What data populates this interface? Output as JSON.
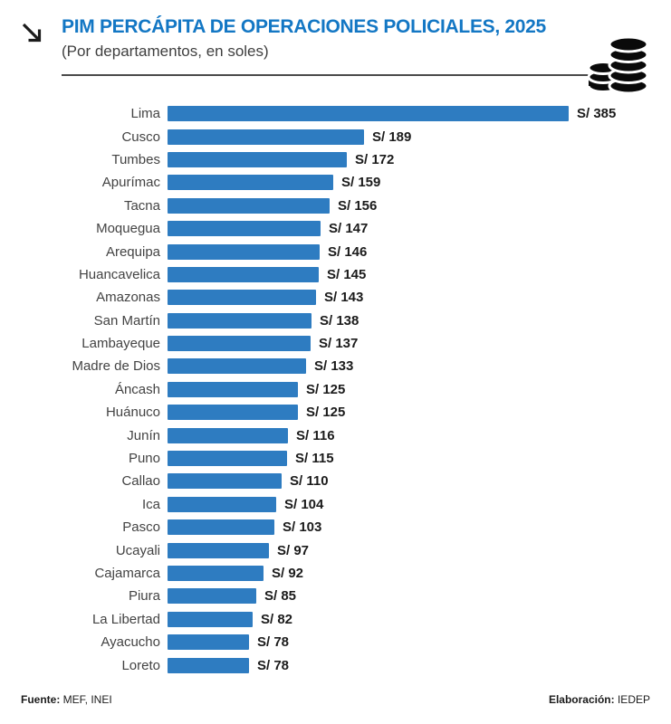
{
  "header": {
    "title": "PIM PERCÁPITA DE OPERACIONES POLICIALES, 2025",
    "subtitle": "(Por departamentos, en soles)"
  },
  "footer": {
    "source_label": "Fuente:",
    "source_value": " MEF, INEI",
    "elaboration_label": "Elaboración:",
    "elaboration_value": " IEDEP"
  },
  "colors": {
    "bar": "#2E7CC1",
    "title": "#1377C4",
    "category_label": "#434343",
    "value_label": "#1B1B1B"
  },
  "chart_data": {
    "type": "bar",
    "orientation": "horizontal",
    "title": "PIM PERCÁPITA DE OPERACIONES POLICIALES, 2025",
    "subtitle": "(Por departamentos, en soles)",
    "unit": "soles (S/)",
    "value_prefix": "S/ ",
    "xlim": [
      0,
      385
    ],
    "grid": false,
    "legend": false,
    "sort": "descending",
    "categories": [
      "Lima",
      "Cusco",
      "Tumbes",
      "Apurímac",
      "Tacna",
      "Moquegua",
      "Arequipa",
      "Huancavelica",
      "Amazonas",
      "San Martín",
      "Lambayeque",
      "Madre de Dios",
      "Áncash",
      "Huánuco",
      "Junín",
      "Puno",
      "Callao",
      "Ica",
      "Pasco",
      "Ucayali",
      "Cajamarca",
      "Piura",
      "La Libertad",
      "Ayacucho",
      "Loreto"
    ],
    "values": [
      385,
      189,
      172,
      159,
      156,
      147,
      146,
      145,
      143,
      138,
      137,
      133,
      125,
      125,
      116,
      115,
      110,
      104,
      103,
      97,
      92,
      85,
      82,
      78,
      78
    ]
  }
}
